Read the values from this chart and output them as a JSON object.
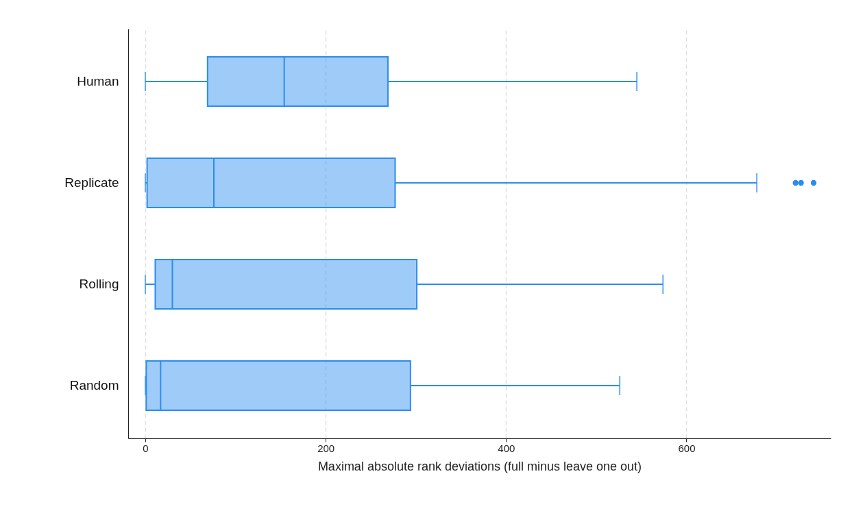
{
  "chart_data": {
    "type": "box",
    "orientation": "horizontal",
    "xlabel": "Maximal absolute rank deviations (full minus leave one out)",
    "categories": [
      "Human",
      "Replicate",
      "Rolling",
      "Random"
    ],
    "boxes": [
      {
        "low": 0,
        "q1": 69,
        "median": 154,
        "q3": 269,
        "high": 545
      },
      {
        "low": 0,
        "q1": 2,
        "median": 76,
        "q3": 277,
        "high": 678,
        "outliers": [
          721,
          727,
          741
        ]
      },
      {
        "low": 0,
        "q1": 11,
        "median": 30,
        "q3": 301,
        "high": 574
      },
      {
        "low": 0,
        "q1": 1,
        "median": 17,
        "q3": 294,
        "high": 526
      }
    ],
    "color": "#2b8cf0",
    "xlim": [
      -19,
      760
    ],
    "xticks": [
      0,
      200,
      400,
      600
    ],
    "grid": "x"
  }
}
